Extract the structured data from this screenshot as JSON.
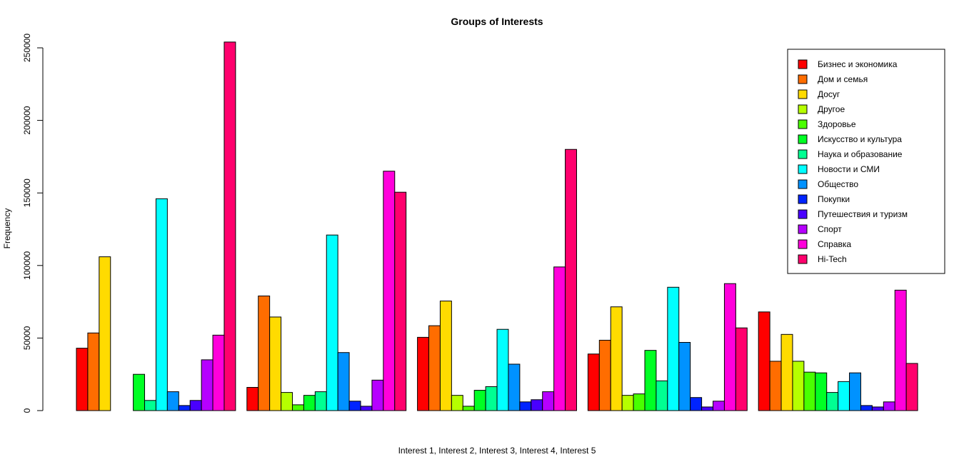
{
  "chart_data": {
    "type": "bar",
    "title": "Groups of Interests",
    "xlabel": "Interest 1, Interest 2, Interest 3, Interest 4, Interest 5",
    "ylabel": "Frequency",
    "ylim": [
      0,
      250000
    ],
    "yticks": [
      "0",
      "50000",
      "100000",
      "150000",
      "200000",
      "250000"
    ],
    "grid": false,
    "legend_position": "top-right",
    "groups": [
      "Interest 1",
      "Interest 2",
      "Interest 3",
      "Interest 4",
      "Interest 5"
    ],
    "series": [
      {
        "name": "Бизнес и экономика",
        "color": "#FF0000",
        "values": [
          43000,
          16000,
          50500,
          39000,
          68000
        ]
      },
      {
        "name": "Дом и семья",
        "color": "#FF6D00",
        "values": [
          53500,
          79000,
          58500,
          48500,
          34000
        ]
      },
      {
        "name": "Досуг",
        "color": "#FFDB00",
        "values": [
          106000,
          64500,
          75500,
          71500,
          52500
        ]
      },
      {
        "name": "Другое",
        "color": "#B6FF00",
        "values": [
          0,
          12500,
          10500,
          10500,
          34000
        ]
      },
      {
        "name": "Здоровье",
        "color": "#49FF00",
        "values": [
          0,
          4000,
          3000,
          11500,
          26500
        ]
      },
      {
        "name": "Искусство и культура",
        "color": "#00FF24",
        "values": [
          25000,
          10500,
          14000,
          41500,
          26000
        ]
      },
      {
        "name": "Наука и образование",
        "color": "#00FF92",
        "values": [
          7000,
          13000,
          16500,
          20500,
          12500
        ]
      },
      {
        "name": "Новости и СМИ",
        "color": "#00FFFF",
        "values": [
          146000,
          121000,
          56000,
          85000,
          20000
        ]
      },
      {
        "name": "Общество",
        "color": "#0092FF",
        "values": [
          13000,
          40000,
          32000,
          47000,
          26000
        ]
      },
      {
        "name": "Покупки",
        "color": "#0024FF",
        "values": [
          3500,
          6500,
          6000,
          9000,
          3500
        ]
      },
      {
        "name": "Путешествия и туризм",
        "color": "#4900FF",
        "values": [
          7000,
          3000,
          7500,
          2500,
          2500
        ]
      },
      {
        "name": "Спорт",
        "color": "#B600FF",
        "values": [
          35000,
          21000,
          13000,
          6500,
          6000
        ]
      },
      {
        "name": "Справка",
        "color": "#FF00DB",
        "values": [
          52000,
          165000,
          99000,
          87500,
          83000
        ]
      },
      {
        "name": "Hi-Tech",
        "color": "#FF006D",
        "values": [
          254000,
          150500,
          180000,
          57000,
          32500
        ]
      }
    ]
  }
}
